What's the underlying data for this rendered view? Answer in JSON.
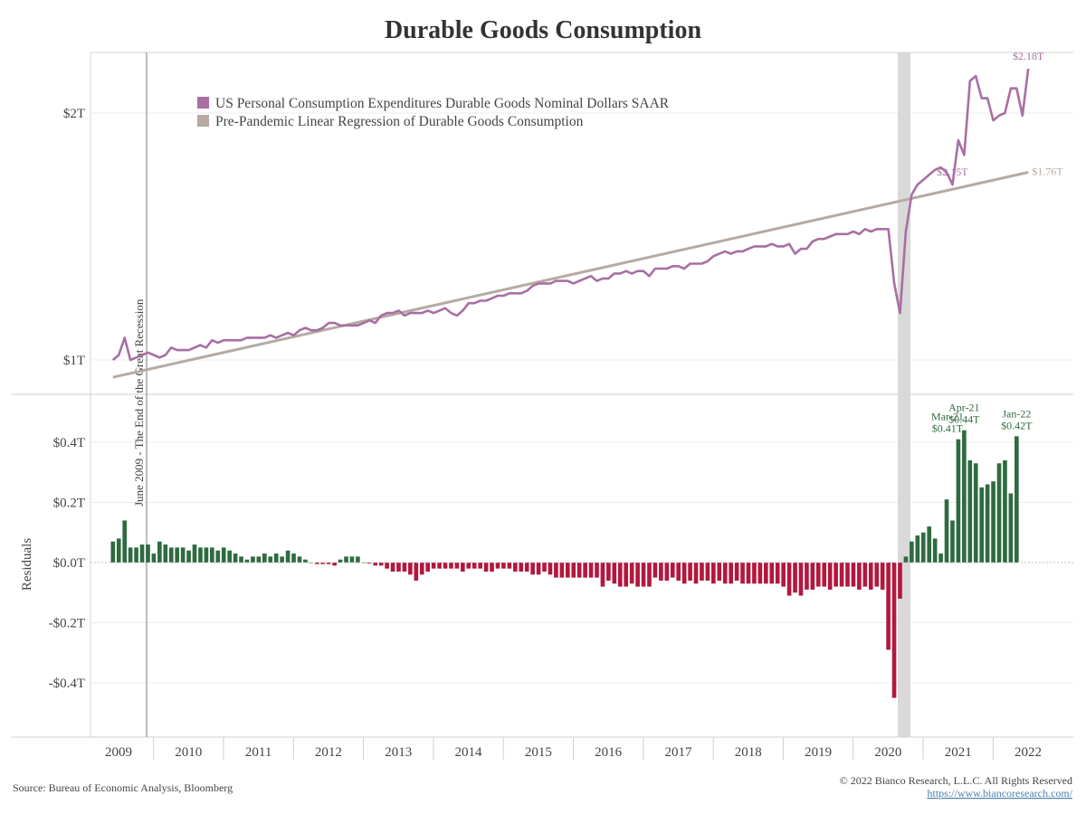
{
  "chart_data": [
    {
      "type": "line",
      "title": "Durable Goods Consumption",
      "ylabel": "",
      "yticks": [
        "$1T",
        "$2T"
      ],
      "ylim": [
        0.87,
        2.25
      ],
      "x_start": 2009.42,
      "x_step": 0.08333,
      "series": [
        {
          "name": "US Personal Consumption Expenditures Durable Goods Nominal Dollars SAAR",
          "color": "#a86fa3",
          "values": [
            1.0,
            1.02,
            1.09,
            1.0,
            1.01,
            1.02,
            1.03,
            1.02,
            1.01,
            1.02,
            1.05,
            1.04,
            1.04,
            1.04,
            1.05,
            1.06,
            1.05,
            1.08,
            1.07,
            1.08,
            1.08,
            1.08,
            1.08,
            1.09,
            1.09,
            1.09,
            1.09,
            1.1,
            1.09,
            1.1,
            1.11,
            1.1,
            1.12,
            1.13,
            1.12,
            1.12,
            1.13,
            1.15,
            1.15,
            1.14,
            1.14,
            1.14,
            1.14,
            1.15,
            1.16,
            1.15,
            1.18,
            1.19,
            1.19,
            1.2,
            1.18,
            1.19,
            1.19,
            1.19,
            1.2,
            1.19,
            1.2,
            1.21,
            1.19,
            1.18,
            1.2,
            1.23,
            1.23,
            1.24,
            1.24,
            1.25,
            1.26,
            1.26,
            1.27,
            1.27,
            1.27,
            1.28,
            1.3,
            1.31,
            1.31,
            1.31,
            1.32,
            1.32,
            1.32,
            1.31,
            1.32,
            1.33,
            1.34,
            1.32,
            1.33,
            1.33,
            1.35,
            1.35,
            1.36,
            1.35,
            1.36,
            1.36,
            1.34,
            1.37,
            1.37,
            1.37,
            1.38,
            1.38,
            1.37,
            1.39,
            1.39,
            1.39,
            1.4,
            1.42,
            1.43,
            1.44,
            1.43,
            1.44,
            1.44,
            1.45,
            1.46,
            1.46,
            1.46,
            1.47,
            1.46,
            1.46,
            1.47,
            1.43,
            1.45,
            1.45,
            1.48,
            1.49,
            1.49,
            1.5,
            1.51,
            1.51,
            1.51,
            1.52,
            1.51,
            1.53,
            1.52,
            1.53,
            1.53,
            1.53,
            1.31,
            1.19,
            1.52,
            1.67,
            1.71,
            1.73,
            1.75,
            1.77,
            1.78,
            1.76,
            1.71,
            1.89,
            1.83,
            2.13,
            2.15,
            2.06,
            2.06,
            1.97,
            1.99,
            2.0,
            2.1,
            2.1,
            1.99,
            2.18
          ]
        },
        {
          "name": "Pre-Pandemic Linear Regression of Durable Goods Consumption",
          "color": "#b6aaa3",
          "line": [
            0.93,
            1.76
          ]
        }
      ],
      "annotations": [
        "$2.15T",
        "$2.18T",
        "$1.76T"
      ]
    },
    {
      "type": "bar",
      "ylabel": "Residuals",
      "yticks": [
        "$0.4T",
        "$0.2T",
        "$0.0T",
        "-$0.2T",
        "-$0.4T"
      ],
      "ylim": [
        -0.58,
        0.56
      ],
      "positive_color": "#2e6b40",
      "negative_color": "#b3173f",
      "values": [
        0.07,
        0.08,
        0.14,
        0.05,
        0.05,
        0.06,
        0.06,
        0.03,
        0.07,
        0.06,
        0.05,
        0.05,
        0.05,
        0.04,
        0.06,
        0.05,
        0.05,
        0.05,
        0.04,
        0.05,
        0.04,
        0.03,
        0.02,
        0.01,
        0.02,
        0.02,
        0.03,
        0.02,
        0.03,
        0.02,
        0.04,
        0.03,
        0.02,
        0.01,
        0.0,
        -0.005,
        -0.005,
        -0.005,
        -0.01,
        0.01,
        0.02,
        0.02,
        0.02,
        0.0,
        -0.003,
        -0.01,
        -0.01,
        -0.02,
        -0.03,
        -0.03,
        -0.03,
        -0.04,
        -0.06,
        -0.04,
        -0.03,
        -0.02,
        -0.02,
        -0.02,
        -0.02,
        -0.02,
        -0.03,
        -0.02,
        -0.02,
        -0.02,
        -0.03,
        -0.03,
        -0.02,
        -0.02,
        -0.02,
        -0.03,
        -0.03,
        -0.03,
        -0.04,
        -0.04,
        -0.03,
        -0.04,
        -0.05,
        -0.05,
        -0.05,
        -0.05,
        -0.05,
        -0.05,
        -0.05,
        -0.05,
        -0.08,
        -0.06,
        -0.07,
        -0.08,
        -0.08,
        -0.07,
        -0.08,
        -0.08,
        -0.08,
        -0.05,
        -0.06,
        -0.06,
        -0.05,
        -0.06,
        -0.07,
        -0.06,
        -0.07,
        -0.06,
        -0.06,
        -0.07,
        -0.06,
        -0.07,
        -0.07,
        -0.06,
        -0.07,
        -0.07,
        -0.07,
        -0.07,
        -0.07,
        -0.07,
        -0.07,
        -0.08,
        -0.11,
        -0.1,
        -0.11,
        -0.09,
        -0.09,
        -0.08,
        -0.08,
        -0.09,
        -0.08,
        -0.08,
        -0.08,
        -0.08,
        -0.09,
        -0.08,
        -0.09,
        -0.08,
        -0.09,
        -0.29,
        -0.45,
        -0.12,
        0.02,
        0.07,
        0.09,
        0.1,
        0.12,
        0.08,
        0.03,
        0.21,
        0.14,
        0.41,
        0.44,
        0.34,
        0.33,
        0.25,
        0.26,
        0.27,
        0.33,
        0.34,
        0.23,
        0.42
      ],
      "x_start": 2009.42,
      "x_step": 0.08333,
      "annotations": [
        {
          "label": "Mar-21",
          "value": "$0.41T"
        },
        {
          "label": "Apr-21",
          "value": "$0.44T"
        },
        {
          "label": "Jan-22",
          "value": "$0.42T"
        }
      ]
    }
  ],
  "xaxis": {
    "years": [
      "2009",
      "2010",
      "2011",
      "2012",
      "2013",
      "2014",
      "2015",
      "2016",
      "2017",
      "2018",
      "2019",
      "2020",
      "2021",
      "2022"
    ]
  },
  "recession_label": "June 2009 - The End of the Great Recession",
  "source": "Source: Bureau of Economic Analysis, Bloomberg",
  "copyright": "© 2022 Bianco Research, L.L.C. All Rights Reserved",
  "url": "https://www.biancoresearch.com/"
}
